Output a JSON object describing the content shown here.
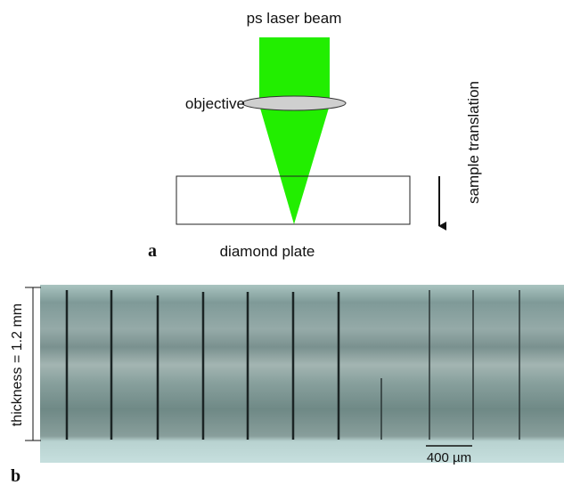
{
  "panel_a": {
    "beam_label": "ps laser beam",
    "objective_label": "objective",
    "translation_label": "sample translation",
    "plate_label": "diamond plate",
    "panel_letter": "a"
  },
  "panel_b": {
    "thickness_label": "thickness = 1.2 mm",
    "scale_label": "400 µm",
    "panel_letter": "b"
  }
}
